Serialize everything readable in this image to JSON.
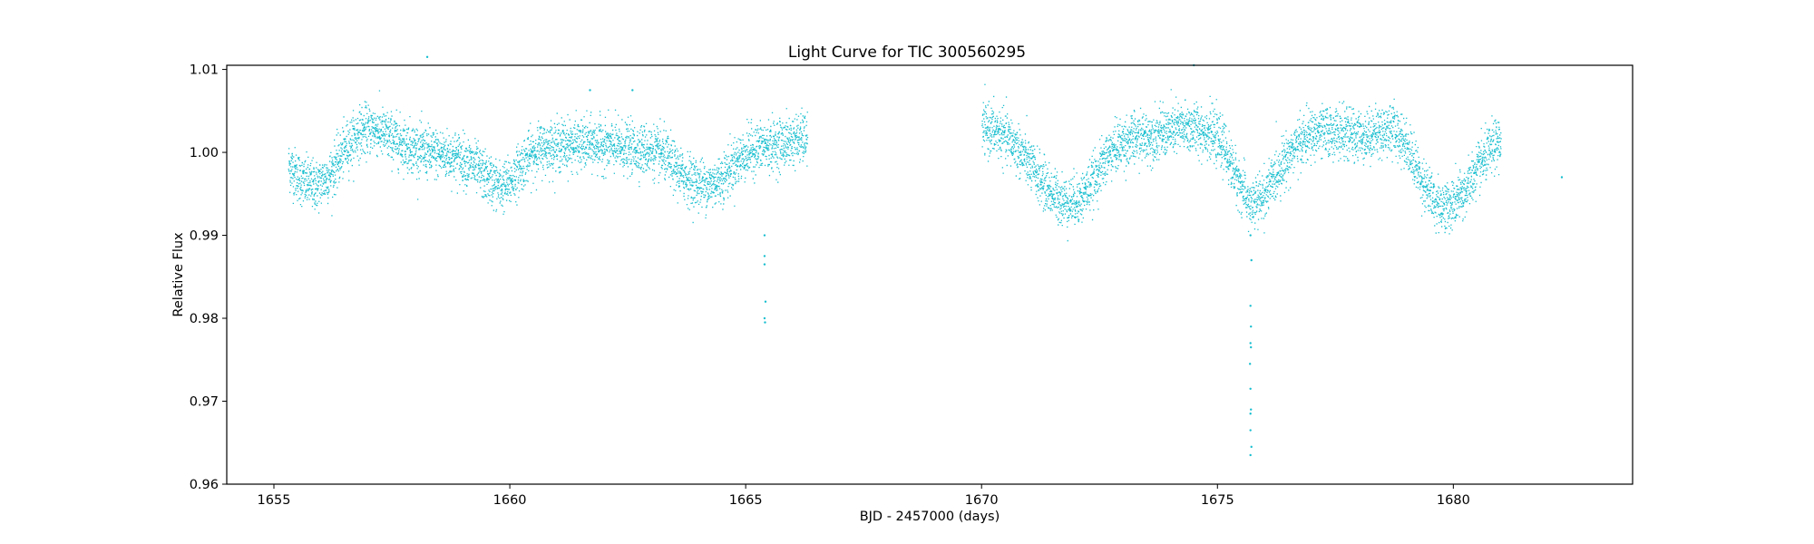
{
  "chart_data": {
    "type": "scatter",
    "title": "Light Curve for TIC 300560295",
    "xlabel": "BJD - 2457000 (days)",
    "ylabel": "Relative Flux",
    "xlim": [
      1654.0,
      1683.8
    ],
    "ylim": [
      0.96,
      1.0105
    ],
    "xticks": [
      1655,
      1660,
      1665,
      1670,
      1675,
      1680
    ],
    "xtick_labels": [
      "1655",
      "1660",
      "1665",
      "1670",
      "1675",
      "1680"
    ],
    "yticks": [
      0.96,
      0.97,
      0.98,
      0.99,
      1.0,
      1.01
    ],
    "ytick_labels": [
      "0.96",
      "0.97",
      "0.98",
      "0.99",
      "1.00",
      "1.01"
    ],
    "grid": false,
    "legend": "none",
    "marker_color": "#17becf",
    "series": [
      {
        "segments": [
          {
            "x": [
              1655.3,
              1655.6,
              1655.9,
              1656.2,
              1656.5,
              1656.8,
              1657.1,
              1657.4,
              1657.7,
              1658.0,
              1658.3,
              1658.6,
              1658.9,
              1659.2,
              1659.5,
              1659.8,
              1660.0,
              1660.3,
              1660.6,
              1660.9,
              1661.2,
              1661.5,
              1661.8,
              1662.1,
              1662.4,
              1662.7,
              1663.0,
              1663.3,
              1663.6,
              1663.9,
              1664.2,
              1664.5,
              1664.8,
              1665.1,
              1665.4,
              1665.7,
              1666.0,
              1666.3
            ],
            "y": [
              0.9985,
              0.9965,
              0.996,
              0.9975,
              1.0005,
              1.0025,
              1.003,
              1.002,
              1.0012,
              1.0005,
              1.0,
              0.9998,
              0.9995,
              0.9985,
              0.997,
              0.9958,
              0.9965,
              0.999,
              1.0005,
              1.0008,
              1.001,
              1.001,
              1.001,
              1.0008,
              1.0006,
              1.0005,
              1.0003,
              0.9995,
              0.9975,
              0.9965,
              0.996,
              0.997,
              0.999,
              1.0003,
              1.0008,
              1.001,
              1.0015,
              1.0018
            ],
            "scatter": 0.0015
          },
          {
            "x": [
              1670.0,
              1670.3,
              1670.6,
              1670.9,
              1671.2,
              1671.5,
              1671.8,
              1672.1,
              1672.4,
              1672.7,
              1673.0,
              1673.3,
              1673.6,
              1673.9,
              1674.2,
              1674.5,
              1674.8,
              1675.1,
              1675.4,
              1675.7,
              1676.0,
              1676.3,
              1676.6,
              1676.9,
              1677.2,
              1677.5,
              1677.8,
              1678.1,
              1678.4,
              1678.7,
              1679.0,
              1679.3,
              1679.6,
              1679.9,
              1680.2,
              1680.5,
              1680.8,
              1681.0
            ],
            "y": [
              1.003,
              1.0025,
              1.0015,
              0.9995,
              0.997,
              0.995,
              0.994,
              0.9945,
              0.997,
              1.0,
              1.0013,
              1.0018,
              1.002,
              1.0025,
              1.003,
              1.003,
              1.0025,
              1.001,
              0.997,
              0.9935,
              0.995,
              0.998,
              1.0005,
              1.002,
              1.0025,
              1.0025,
              1.0022,
              1.002,
              1.0025,
              1.003,
              1.001,
              0.997,
              0.994,
              0.9935,
              0.995,
              0.998,
              1.0005,
              1.0015
            ],
            "scatter": 0.0015
          }
        ],
        "outliers": {
          "x": [
            1658.25,
            1665.4,
            1665.4,
            1665.42,
            1665.4,
            1665.41,
            1665.4,
            1682.3,
            1674.5,
            1661.7,
            1662.6,
            1675.7,
            1675.72,
            1675.7,
            1675.71,
            1675.7,
            1675.69,
            1675.7,
            1675.71,
            1675.7,
            1675.72,
            1675.7,
            1675.7,
            1675.71
          ],
          "y": [
            1.0115,
            0.99,
            0.9865,
            0.982,
            0.98,
            0.9795,
            0.9875,
            0.997,
            1.0105,
            1.0075,
            1.0075,
            0.99,
            0.987,
            0.9815,
            0.979,
            0.977,
            0.9745,
            0.9715,
            0.969,
            0.9665,
            0.9645,
            0.9635,
            0.9685,
            0.9765
          ]
        }
      }
    ]
  }
}
